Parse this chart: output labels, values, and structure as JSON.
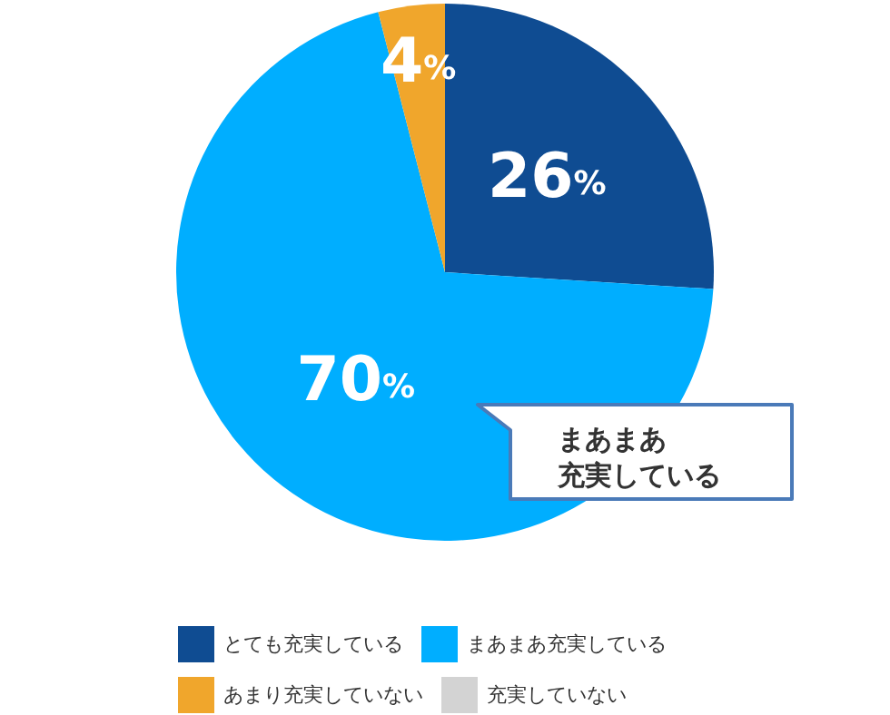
{
  "chart_data": {
    "type": "pie",
    "categories": [
      "とても充実している",
      "まあまあ充実している",
      "あまり充実していない",
      "充実していない"
    ],
    "values": [
      26,
      70,
      4,
      0
    ],
    "colors": [
      "#0f4c92",
      "#00aeff",
      "#f0a62c",
      "#d3d3d3"
    ],
    "value_labels": [
      "26%",
      "70%",
      "4%",
      null
    ],
    "annotations": [
      "まあまあ充実している"
    ],
    "legend": "bottom"
  }
}
